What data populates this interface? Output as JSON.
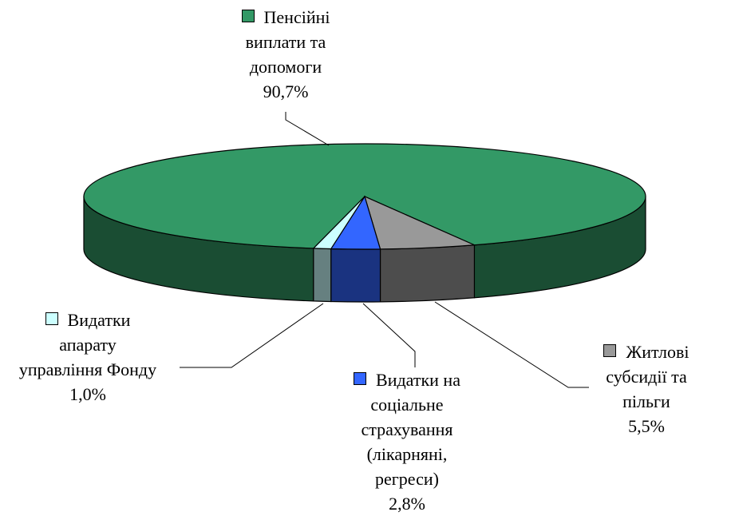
{
  "chart_data": {
    "type": "pie3d",
    "categories": [
      "Пенсійні виплати та допомоги",
      "Житлові субсидії та пільги",
      "Видатки на соціальне страхування (лікарняні, регреси)",
      "Видатки апарату управління Фонду"
    ],
    "values": [
      90.7,
      5.5,
      2.8,
      1.0
    ],
    "value_labels": [
      "90,7%",
      "5,5%",
      "2,8%",
      "1,0%"
    ],
    "colors": [
      "#339966",
      "#999999",
      "#3366ff",
      "#ccffff"
    ]
  }
}
